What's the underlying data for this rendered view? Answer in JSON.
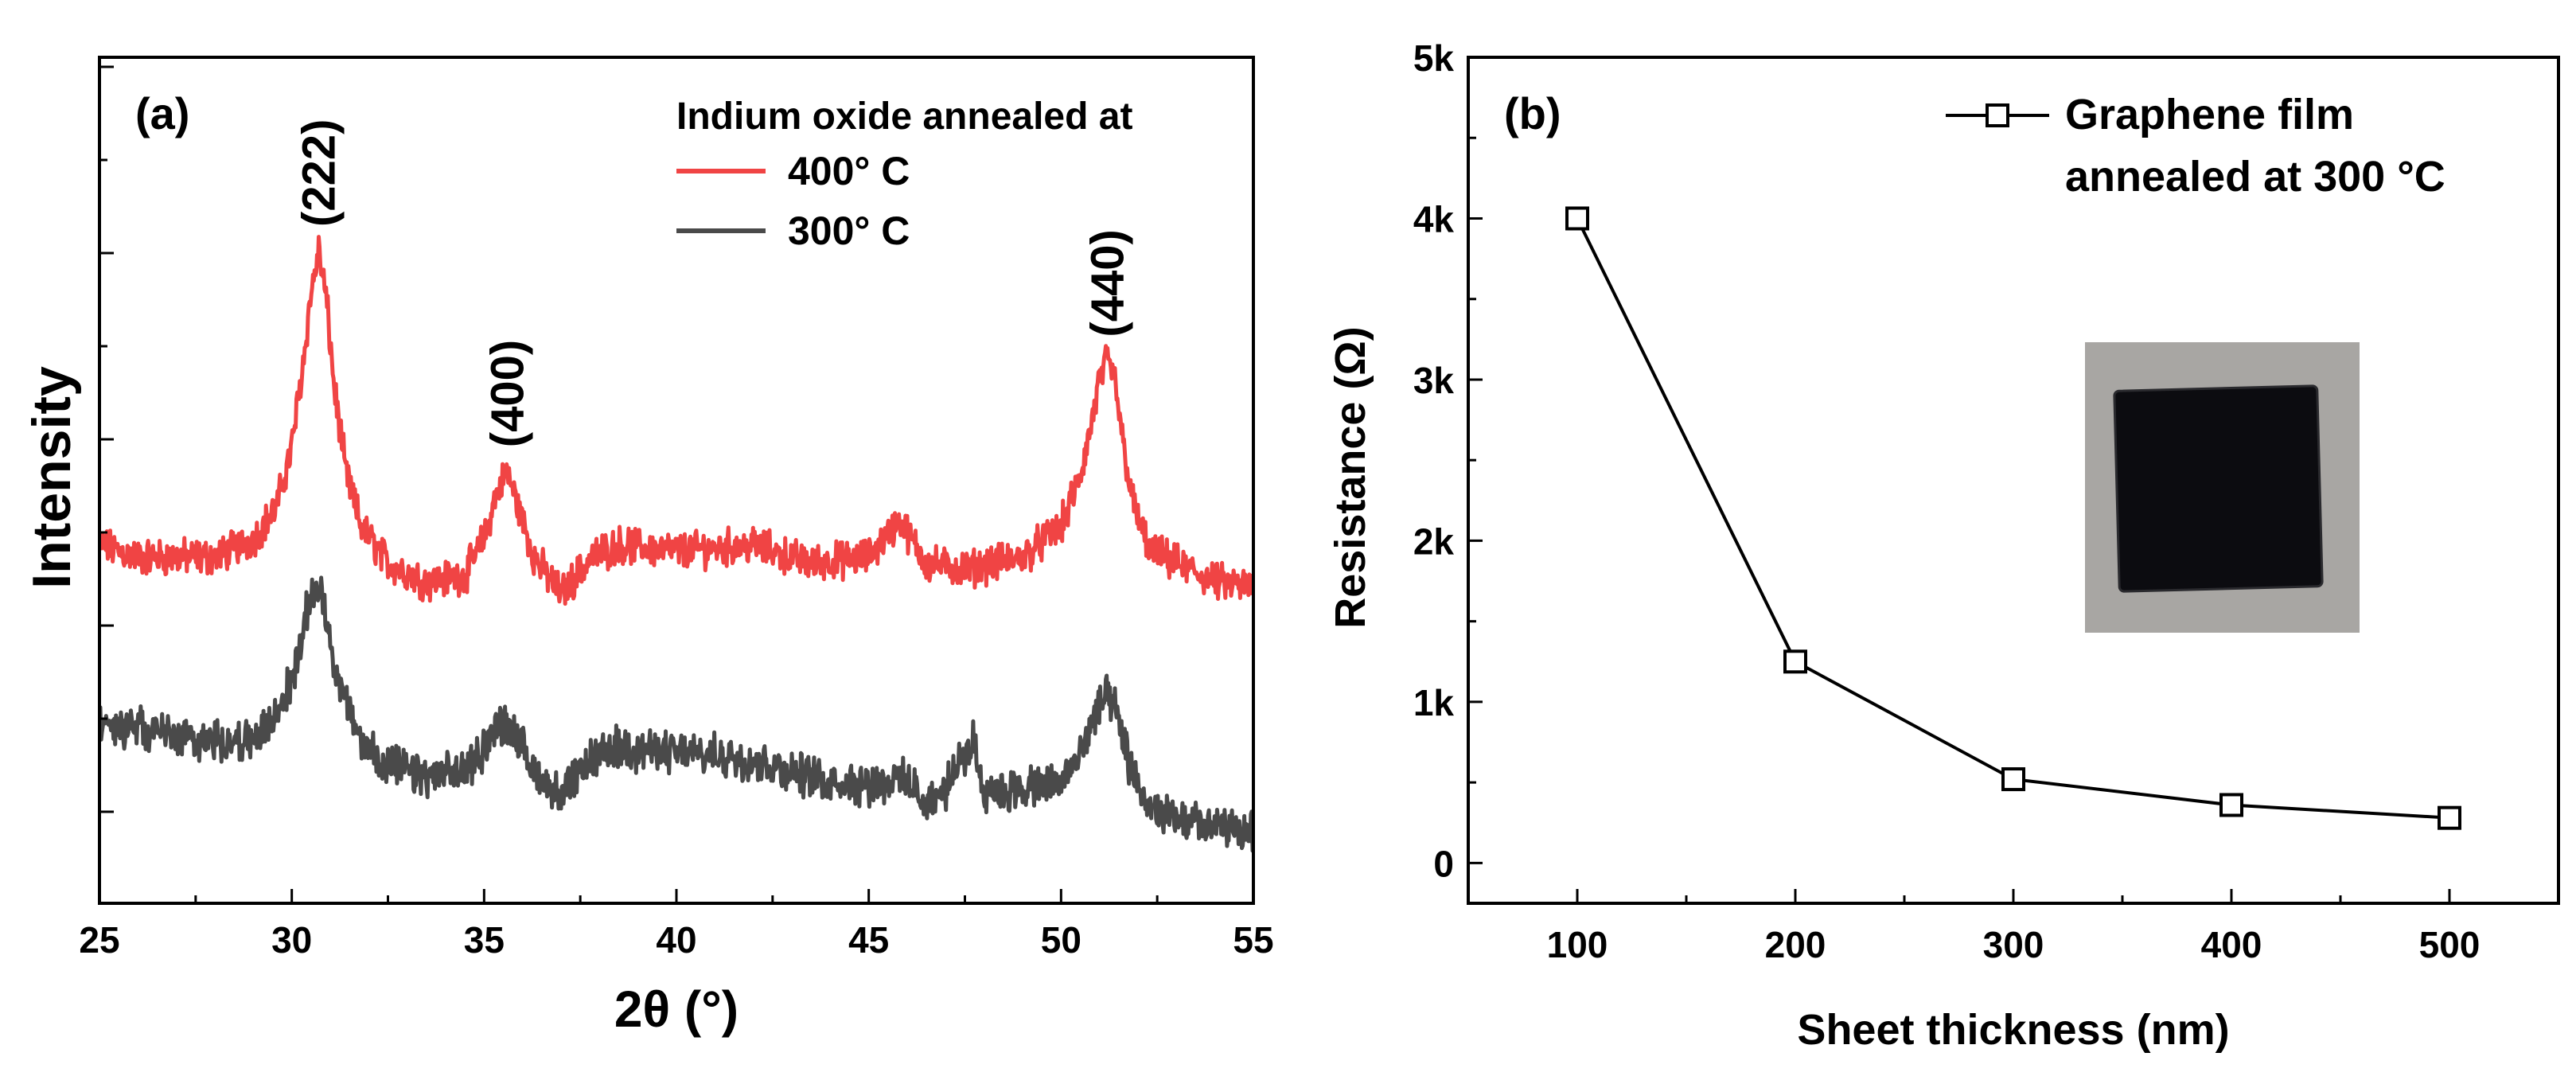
{
  "chart_data": [
    {
      "type": "line",
      "panel_label": "(a)",
      "title": "",
      "xlabel": "2θ (°)",
      "ylabel": "Intensity",
      "xlim": [
        25,
        55
      ],
      "x_ticks": [
        "25",
        "30",
        "35",
        "40",
        "45",
        "50",
        "55"
      ],
      "y_ticks_labeled": false,
      "legend": {
        "title": "Indium oxide annealed at",
        "position": "top-right",
        "entries": [
          "400° C",
          "300° C"
        ]
      },
      "peaks": [
        {
          "label": "(222)",
          "x": 30.7
        },
        {
          "label": "(400)",
          "x": 35.6
        },
        {
          "label": "(440)",
          "x": 51.2
        }
      ],
      "series": [
        {
          "name": "400° C",
          "color": "#f04444",
          "x": [
            25,
            26,
            27,
            28,
            29,
            29.6,
            30.0,
            30.3,
            30.5,
            30.7,
            30.9,
            31.1,
            31.4,
            31.8,
            32.5,
            33.5,
            34.5,
            35.0,
            35.3,
            35.6,
            35.9,
            36.3,
            37,
            37.8,
            38.5,
            40,
            42,
            43.5,
            45,
            45.8,
            46.5,
            47.5,
            49,
            50,
            50.5,
            50.8,
            51.0,
            51.2,
            51.4,
            51.6,
            51.9,
            52.3,
            53,
            54,
            55
          ],
          "y": [
            0.52,
            0.5,
            0.5,
            0.5,
            0.53,
            0.58,
            0.68,
            0.82,
            0.93,
            1.0,
            0.92,
            0.78,
            0.64,
            0.55,
            0.49,
            0.46,
            0.47,
            0.53,
            0.6,
            0.64,
            0.58,
            0.5,
            0.44,
            0.5,
            0.52,
            0.51,
            0.52,
            0.49,
            0.5,
            0.56,
            0.49,
            0.48,
            0.5,
            0.55,
            0.63,
            0.72,
            0.79,
            0.82,
            0.79,
            0.69,
            0.58,
            0.51,
            0.49,
            0.46,
            0.45
          ]
        },
        {
          "name": "300° C",
          "color": "#4a4a4a",
          "x": [
            25,
            26,
            27,
            28,
            29,
            29.6,
            30.0,
            30.3,
            30.5,
            30.7,
            30.9,
            31.1,
            31.4,
            31.8,
            32.5,
            33.5,
            34.5,
            35.0,
            35.3,
            35.6,
            35.9,
            36.3,
            37,
            37.8,
            38.5,
            40,
            42,
            43.5,
            45,
            45.8,
            46.5,
            47.0,
            47.7,
            48.0,
            49,
            50,
            50.5,
            50.8,
            51.0,
            51.2,
            51.4,
            51.6,
            51.9,
            52.3,
            53,
            54,
            55
          ],
          "y": [
            0.23,
            0.22,
            0.21,
            0.2,
            0.2,
            0.24,
            0.3,
            0.38,
            0.44,
            0.46,
            0.4,
            0.33,
            0.26,
            0.2,
            0.16,
            0.14,
            0.15,
            0.19,
            0.22,
            0.23,
            0.2,
            0.15,
            0.11,
            0.17,
            0.19,
            0.18,
            0.17,
            0.14,
            0.13,
            0.14,
            0.1,
            0.12,
            0.2,
            0.12,
            0.12,
            0.13,
            0.18,
            0.23,
            0.26,
            0.27,
            0.25,
            0.2,
            0.14,
            0.09,
            0.07,
            0.06,
            0.05
          ]
        }
      ]
    },
    {
      "type": "line",
      "panel_label": "(b)",
      "title": "",
      "xlabel": "Sheet thickness (nm)",
      "ylabel": "Resistance (Ω)",
      "xlim": [
        50,
        550
      ],
      "ylim": [
        -250,
        5000
      ],
      "x_ticks": [
        100,
        200,
        300,
        400,
        500
      ],
      "x_tick_labels": [
        "100",
        "200",
        "300",
        "400",
        "500"
      ],
      "y_ticks": [
        0,
        1000,
        2000,
        3000,
        4000,
        5000
      ],
      "y_tick_labels": [
        "0",
        "1k",
        "2k",
        "3k",
        "4k",
        "5k"
      ],
      "legend": {
        "position": "top-right",
        "entries": [
          "Graphene film",
          "annealed at 300 °C"
        ]
      },
      "marker": "open-square",
      "inset": "photo of black square graphene film",
      "series": [
        {
          "name": "Graphene film annealed at 300 °C",
          "color": "#000000",
          "x": [
            100,
            200,
            300,
            400,
            500
          ],
          "y": [
            4000,
            1250,
            520,
            360,
            280
          ]
        }
      ]
    }
  ]
}
